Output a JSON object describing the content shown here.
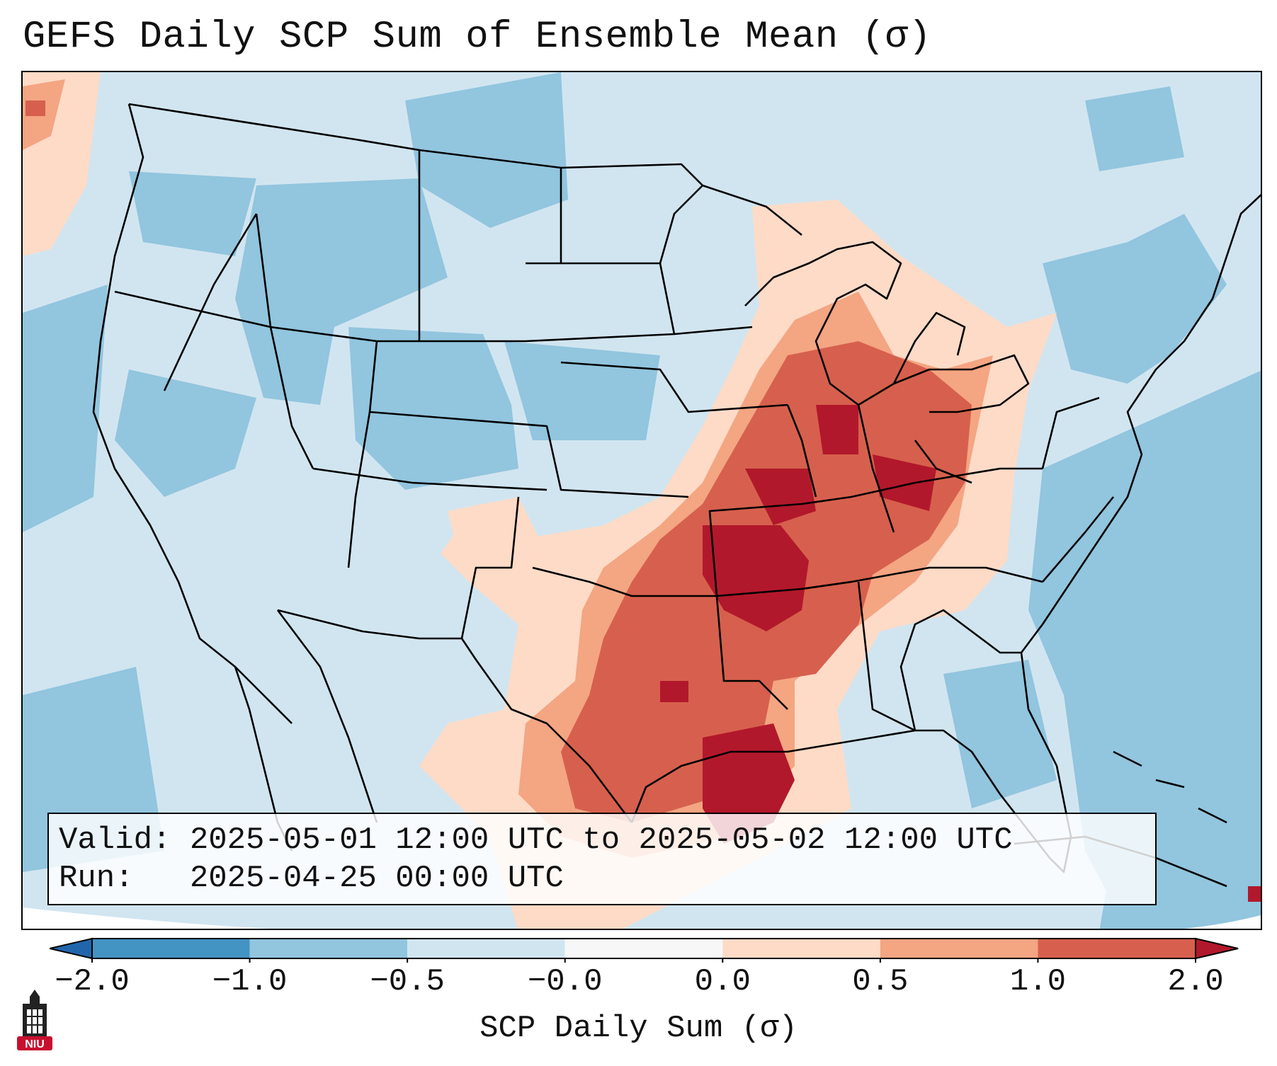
{
  "title": "GEFS Daily SCP Sum of Ensemble Mean (σ)",
  "info": {
    "valid_line": "Valid: 2025-05-01 12:00 UTC to 2025-05-02 12:00 UTC",
    "run_line": "Run:   2025-04-25 00:00 UTC"
  },
  "colorbar": {
    "label": "SCP Daily Sum (σ)",
    "ticks": [
      "−2.0",
      "−1.0",
      "−0.5",
      "−0.0",
      "0.0",
      "0.5",
      "1.0",
      "2.0"
    ],
    "colors": {
      "under": "#2166ac",
      "bin_m2_m1": "#4393c3",
      "bin_m1_m05": "#92c5de",
      "bin_m05_m0": "#d1e5f0",
      "bin_m0_0": "#f7f7f7",
      "bin_0_05": "#fddbc7",
      "bin_05_1": "#f4a582",
      "bin_1_2": "#d6604d",
      "over": "#b2182b"
    }
  },
  "logo": {
    "text": "NIU",
    "color": "#c8102e"
  },
  "map": {
    "projection": "Lambert conformal (CONUS)",
    "field": "SCP daily sum anomaly",
    "max_region": "Southern Plains / Lower Mississippi & Ohio Valleys"
  }
}
